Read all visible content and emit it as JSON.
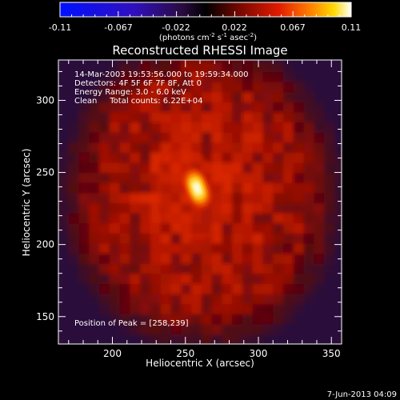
{
  "chart_data": {
    "type": "heatmap",
    "title": "Reconstructed RHESSI Image",
    "xlabel": "Heliocentric X (arcsec)",
    "ylabel": "Heliocentric Y (arcsec)",
    "xlim": [
      163,
      357
    ],
    "ylim": [
      131,
      328
    ],
    "x_ticks": [
      200,
      250,
      300,
      350
    ],
    "y_ticks": [
      150,
      200,
      250,
      300
    ],
    "colorbar": {
      "min": -0.11,
      "max": 0.11,
      "ticks": [
        "-0.11",
        "-0.067",
        "-0.022",
        "0.022",
        "0.067",
        "0.11"
      ],
      "units_parts": [
        "(photons cm",
        "-2",
        " s",
        "-1",
        " asec",
        "-2",
        ")"
      ],
      "colormap": "black-red-yellow-white (hot), negative blue/purple"
    },
    "annotations": [
      "14-Mar-2003 19:53:56.000 to 19:59:34.000",
      "Detectors: 4F 5F 6F 7F 8F, Att 0",
      "Energy Range: 3.0 - 6.0 keV",
      "Clean     Total counts: 6.22E+04"
    ],
    "peak_label": "Position of Peak = [258,239]",
    "peak": [
      258,
      239
    ],
    "sources": [
      {
        "x": 258,
        "y": 239,
        "amp": 1.0,
        "sx": 5.5,
        "sy": 9.5,
        "angle": -20
      },
      {
        "x": 254,
        "y": 235,
        "amp": 0.25,
        "sx": 14,
        "sy": 20,
        "angle": -20
      }
    ]
  },
  "footer": {
    "date": "7-Jun-2013 04:09"
  }
}
